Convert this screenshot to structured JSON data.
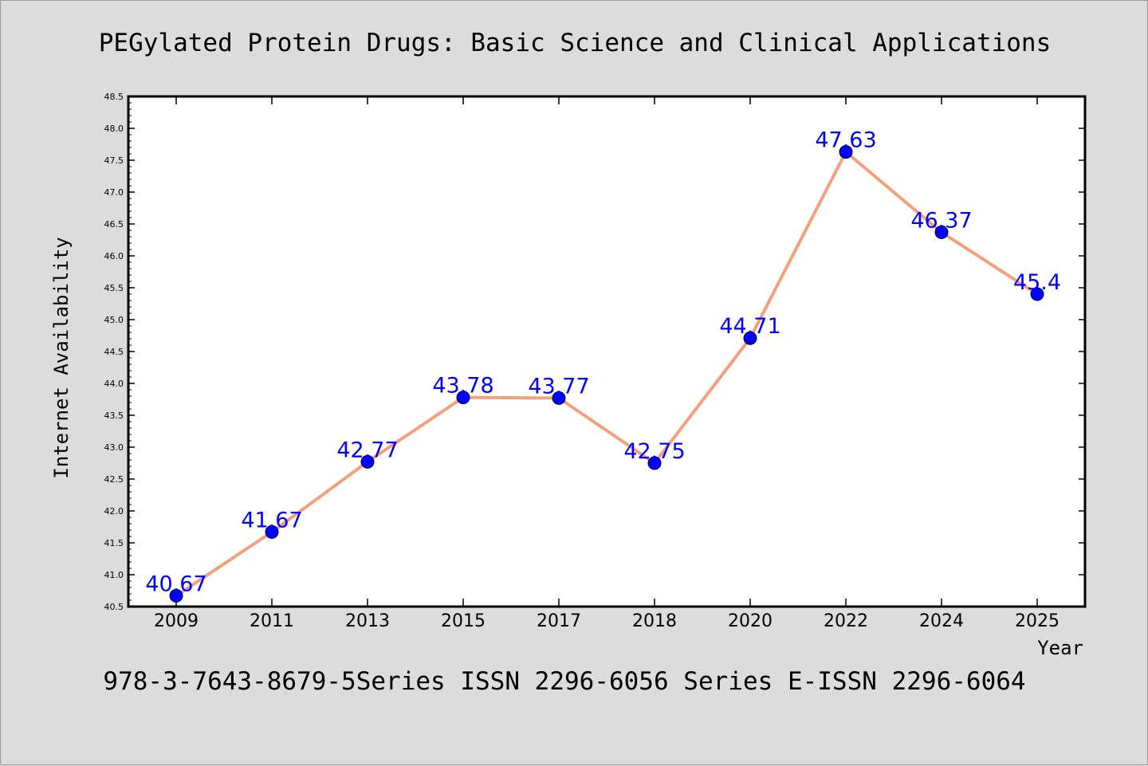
{
  "chart_data": {
    "type": "line",
    "title": "PEGylated Protein Drugs: Basic Science and Clinical Applications",
    "xlabel": "Year",
    "ylabel": "Internet Availability",
    "categories": [
      "2009",
      "2011",
      "2013",
      "2015",
      "2017",
      "2018",
      "2020",
      "2022",
      "2024",
      "2025"
    ],
    "series": [
      {
        "values": [
          40.67,
          41.67,
          42.77,
          43.78,
          43.77,
          42.75,
          44.71,
          47.63,
          46.37,
          45.4
        ],
        "data_labels": [
          "40.67",
          "41.67",
          "42.77",
          "43.78",
          "43.77",
          "42.75",
          "44.71",
          "47.63",
          "46.37",
          "45.4"
        ]
      }
    ],
    "ylim": [
      40.5,
      48.5
    ],
    "yticks": [
      "40.5",
      "41.0",
      "41.5",
      "42.0",
      "42.5",
      "43.0",
      "43.5",
      "44.0",
      "44.5",
      "45.0",
      "45.5",
      "46.0",
      "46.5",
      "47.0",
      "47.5",
      "48.0",
      "48.5"
    ],
    "grid": false,
    "legend": "none",
    "colors": {
      "line": "#f4a07c",
      "marker": "#0000ff",
      "label": "#0000ff",
      "background": "#dcdcdc",
      "plot_bg": "#ffffff"
    }
  },
  "footer_text": "978-3-7643-8679-5Series ISSN 2296-6056 Series E-ISSN 2296-6064"
}
